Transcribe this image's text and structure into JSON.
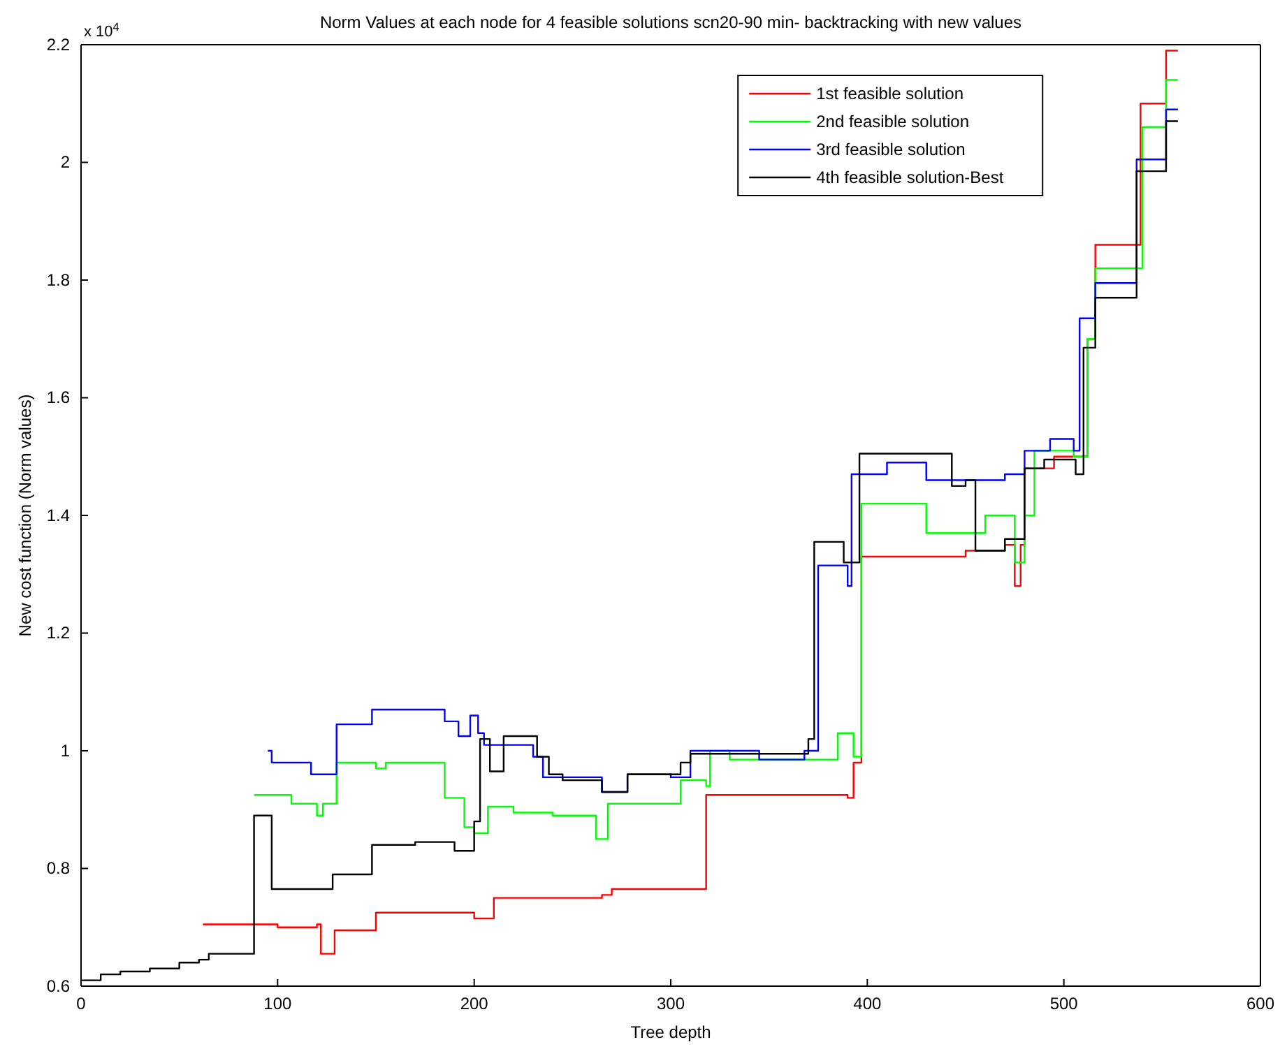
{
  "chart_data": {
    "type": "step",
    "title": "Norm Values at each node for 4 feasible solutions scn20-90 min- backtracking with new values",
    "xlabel": "Tree depth",
    "ylabel": "New cost function (Norm values)",
    "annotations": [
      "x 10$^{4}$"
    ],
    "xlim": [
      0,
      600
    ],
    "xticks": [
      0,
      100,
      200,
      300,
      400,
      500,
      600
    ],
    "ylim": [
      0.6,
      2.2
    ],
    "yticks": [
      0.6,
      0.8,
      1,
      1.2,
      1.4,
      1.6,
      1.8,
      2,
      2.2
    ],
    "grid": false,
    "legend": "top right",
    "line_style": "solid",
    "marker": "none",
    "series": [
      {
        "name": "1st feasible solution",
        "color": "#ff0000",
        "x": [
          62,
          100,
          120,
          122,
          129,
          150,
          200,
          210,
          265,
          270,
          318,
          390,
          393,
          397,
          450,
          470,
          475,
          478,
          480,
          495,
          512,
          516,
          539,
          552,
          558
        ],
        "values": [
          0.705,
          0.7,
          0.705,
          0.655,
          0.695,
          0.725,
          0.715,
          0.75,
          0.755,
          0.765,
          0.925,
          0.92,
          0.98,
          1.33,
          1.34,
          1.35,
          1.28,
          1.35,
          1.48,
          1.5,
          1.7,
          1.86,
          2.1,
          2.19,
          2.19
        ]
      },
      {
        "name": "2nd feasible solution",
        "color": "#00ff00",
        "x": [
          88,
          107,
          120,
          123,
          130,
          150,
          155,
          185,
          195,
          200,
          207,
          220,
          240,
          262,
          268,
          305,
          318,
          320,
          330,
          385,
          393,
          397,
          430,
          460,
          475,
          480,
          485,
          505,
          512,
          516,
          540,
          552,
          558
        ],
        "values": [
          0.925,
          0.91,
          0.89,
          0.91,
          0.98,
          0.97,
          0.98,
          0.92,
          0.87,
          0.86,
          0.905,
          0.895,
          0.89,
          0.85,
          0.91,
          0.95,
          0.94,
          1,
          0.985,
          1.03,
          0.99,
          1.42,
          1.37,
          1.4,
          1.32,
          1.4,
          1.51,
          1.5,
          1.7,
          1.82,
          2.06,
          2.14,
          2.14
        ]
      },
      {
        "name": "3rd feasible solution",
        "color": "#0000ff",
        "x": [
          95,
          97,
          117,
          130,
          148,
          185,
          192,
          198,
          202,
          205,
          230,
          235,
          265,
          278,
          300,
          310,
          345,
          368,
          375,
          390,
          392,
          410,
          430,
          470,
          480,
          493,
          505,
          508,
          516,
          537,
          552,
          558
        ],
        "values": [
          1,
          0.98,
          0.96,
          1.045,
          1.07,
          1.05,
          1.025,
          1.06,
          1.03,
          1.01,
          0.99,
          0.955,
          0.93,
          0.96,
          0.955,
          1,
          0.985,
          1,
          1.315,
          1.28,
          1.47,
          1.49,
          1.46,
          1.47,
          1.51,
          1.53,
          1.51,
          1.735,
          1.795,
          2.005,
          2.09,
          2.09
        ]
      },
      {
        "name": "4th feasible solution-Best",
        "color": "#000000",
        "x": [
          0,
          10,
          20,
          35,
          50,
          60,
          65,
          88,
          97,
          128,
          148,
          170,
          190,
          200,
          203,
          208,
          215,
          232,
          238,
          245,
          265,
          278,
          305,
          310,
          370,
          373,
          388,
          396,
          443,
          450,
          455,
          470,
          480,
          490,
          506,
          510,
          516,
          537,
          552,
          558
        ],
        "values": [
          0.61,
          0.62,
          0.625,
          0.63,
          0.64,
          0.645,
          0.655,
          0.89,
          0.765,
          0.79,
          0.84,
          0.845,
          0.83,
          0.88,
          1.02,
          0.965,
          1.025,
          0.99,
          0.96,
          0.95,
          0.93,
          0.96,
          0.98,
          0.995,
          1.02,
          1.355,
          1.32,
          1.505,
          1.45,
          1.46,
          1.34,
          1.36,
          1.48,
          1.495,
          1.47,
          1.685,
          1.77,
          1.985,
          2.07,
          2.07
        ]
      }
    ]
  }
}
